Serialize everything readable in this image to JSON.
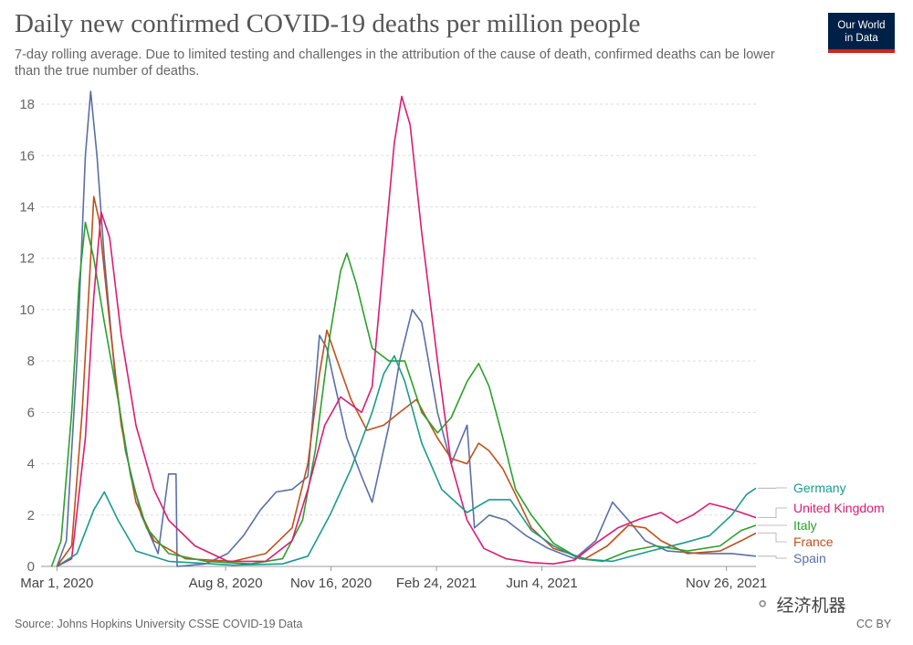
{
  "header": {
    "title": "Daily new confirmed COVID-19 deaths per million people",
    "subtitle": "7-day rolling average. Due to limited testing and challenges in the attribution of the cause of death, confirmed deaths can be lower than the true number of deaths.",
    "logo_line1": "Our World",
    "logo_line2": "in Data"
  },
  "footer": {
    "source": "Source: Johns Hopkins University CSSE COVID-19 Data",
    "license": "CC BY",
    "watermark": "经济机器"
  },
  "colors": {
    "Germany": "#1a9a8c",
    "United Kingdom": "#dc1c72",
    "Italy": "#2ca02c",
    "France": "#c0501a",
    "Spain": "#5b6fa6",
    "logo_bg": "#002147",
    "logo_bar": "#ce261e"
  },
  "chart_data": {
    "type": "line",
    "title": "Daily new confirmed COVID-19 deaths per million people",
    "x_axis": {
      "type": "date",
      "range": [
        "2020-02-15",
        "2021-12-24"
      ],
      "tick_labels": [
        "Mar 1, 2020",
        "Aug 8, 2020",
        "Nov 16, 2020",
        "Feb 24, 2021",
        "Jun 4, 2021",
        "Nov 26, 2021"
      ],
      "ticks": [
        "2020-03-01",
        "2020-08-08",
        "2020-11-16",
        "2021-02-24",
        "2021-06-04",
        "2021-11-26"
      ]
    },
    "y_axis": {
      "range": [
        0,
        18.5
      ],
      "ticks": [
        0,
        2,
        4,
        6,
        8,
        10,
        12,
        14,
        16,
        18
      ]
    },
    "grid": "horizontal dashed",
    "legend": "labels at right end of lines",
    "series": [
      {
        "name": "Germany",
        "points": [
          [
            "2020-03-01",
            0
          ],
          [
            "2020-03-20",
            0.5
          ],
          [
            "2020-04-05",
            2.2
          ],
          [
            "2020-04-15",
            2.9
          ],
          [
            "2020-04-28",
            1.8
          ],
          [
            "2020-05-15",
            0.6
          ],
          [
            "2020-06-15",
            0.2
          ],
          [
            "2020-08-15",
            0.05
          ],
          [
            "2020-10-01",
            0.1
          ],
          [
            "2020-10-25",
            0.4
          ],
          [
            "2020-11-15",
            2.0
          ],
          [
            "2020-12-05",
            3.8
          ],
          [
            "2020-12-25",
            6.0
          ],
          [
            "2021-01-05",
            7.5
          ],
          [
            "2021-01-15",
            8.2
          ],
          [
            "2021-01-25",
            7.2
          ],
          [
            "2021-02-10",
            4.8
          ],
          [
            "2021-03-01",
            3.0
          ],
          [
            "2021-03-25",
            2.1
          ],
          [
            "2021-04-15",
            2.6
          ],
          [
            "2021-05-05",
            2.6
          ],
          [
            "2021-05-25",
            1.4
          ],
          [
            "2021-06-15",
            0.8
          ],
          [
            "2021-07-10",
            0.3
          ],
          [
            "2021-08-10",
            0.2
          ],
          [
            "2021-09-15",
            0.6
          ],
          [
            "2021-10-15",
            0.9
          ],
          [
            "2021-11-10",
            1.2
          ],
          [
            "2021-12-01",
            2.0
          ],
          [
            "2021-12-15",
            2.8
          ],
          [
            "2021-12-24",
            3.05
          ]
        ]
      },
      {
        "name": "United Kingdom",
        "points": [
          [
            "2020-03-01",
            0
          ],
          [
            "2020-03-15",
            0.3
          ],
          [
            "2020-03-28",
            5.0
          ],
          [
            "2020-04-05",
            10.5
          ],
          [
            "2020-04-12",
            13.8
          ],
          [
            "2020-04-20",
            12.8
          ],
          [
            "2020-05-01",
            9.0
          ],
          [
            "2020-05-15",
            5.5
          ],
          [
            "2020-06-01",
            3.0
          ],
          [
            "2020-06-15",
            1.8
          ],
          [
            "2020-07-10",
            0.8
          ],
          [
            "2020-08-10",
            0.2
          ],
          [
            "2020-09-15",
            0.2
          ],
          [
            "2020-10-10",
            1.0
          ],
          [
            "2020-10-25",
            3.0
          ],
          [
            "2020-11-10",
            5.5
          ],
          [
            "2020-11-25",
            6.6
          ],
          [
            "2020-12-05",
            6.3
          ],
          [
            "2020-12-15",
            6.0
          ],
          [
            "2020-12-25",
            7.0
          ],
          [
            "2021-01-05",
            12.0
          ],
          [
            "2021-01-15",
            16.5
          ],
          [
            "2021-01-22",
            18.3
          ],
          [
            "2021-01-30",
            17.2
          ],
          [
            "2021-02-10",
            13.0
          ],
          [
            "2021-02-25",
            8.0
          ],
          [
            "2021-03-10",
            4.0
          ],
          [
            "2021-03-25",
            1.8
          ],
          [
            "2021-04-10",
            0.7
          ],
          [
            "2021-05-01",
            0.3
          ],
          [
            "2021-05-25",
            0.15
          ],
          [
            "2021-06-15",
            0.1
          ],
          [
            "2021-07-05",
            0.25
          ],
          [
            "2021-07-25",
            0.9
          ],
          [
            "2021-08-15",
            1.5
          ],
          [
            "2021-09-05",
            1.85
          ],
          [
            "2021-09-25",
            2.1
          ],
          [
            "2021-10-10",
            1.7
          ],
          [
            "2021-10-25",
            2.0
          ],
          [
            "2021-11-10",
            2.45
          ],
          [
            "2021-11-25",
            2.3
          ],
          [
            "2021-12-10",
            2.1
          ],
          [
            "2021-12-24",
            1.9
          ]
        ]
      },
      {
        "name": "Italy",
        "points": [
          [
            "2020-02-25",
            0
          ],
          [
            "2020-03-05",
            1.0
          ],
          [
            "2020-03-15",
            6.0
          ],
          [
            "2020-03-22",
            11.0
          ],
          [
            "2020-03-28",
            13.4
          ],
          [
            "2020-04-05",
            12.0
          ],
          [
            "2020-04-15",
            9.5
          ],
          [
            "2020-04-28",
            6.5
          ],
          [
            "2020-05-10",
            3.5
          ],
          [
            "2020-05-25",
            1.5
          ],
          [
            "2020-06-15",
            0.5
          ],
          [
            "2020-07-20",
            0.2
          ],
          [
            "2020-09-01",
            0.1
          ],
          [
            "2020-10-01",
            0.3
          ],
          [
            "2020-10-20",
            1.8
          ],
          [
            "2020-11-01",
            4.5
          ],
          [
            "2020-11-15",
            9.0
          ],
          [
            "2020-11-25",
            11.5
          ],
          [
            "2020-12-01",
            12.2
          ],
          [
            "2020-12-10",
            11.0
          ],
          [
            "2020-12-25",
            8.5
          ],
          [
            "2021-01-10",
            8.0
          ],
          [
            "2021-01-25",
            8.0
          ],
          [
            "2021-02-10",
            6.0
          ],
          [
            "2021-02-25",
            5.2
          ],
          [
            "2021-03-10",
            5.8
          ],
          [
            "2021-03-25",
            7.2
          ],
          [
            "2021-04-05",
            7.9
          ],
          [
            "2021-04-15",
            7.0
          ],
          [
            "2021-04-28",
            5.0
          ],
          [
            "2021-05-10",
            3.0
          ],
          [
            "2021-05-25",
            2.0
          ],
          [
            "2021-06-15",
            0.9
          ],
          [
            "2021-07-10",
            0.3
          ],
          [
            "2021-08-01",
            0.2
          ],
          [
            "2021-08-25",
            0.6
          ],
          [
            "2021-09-20",
            0.8
          ],
          [
            "2021-10-20",
            0.6
          ],
          [
            "2021-11-20",
            0.8
          ],
          [
            "2021-12-10",
            1.4
          ],
          [
            "2021-12-24",
            1.6
          ]
        ]
      },
      {
        "name": "France",
        "points": [
          [
            "2020-03-01",
            0
          ],
          [
            "2020-03-15",
            0.8
          ],
          [
            "2020-03-25",
            6.0
          ],
          [
            "2020-04-02",
            12.0
          ],
          [
            "2020-04-05",
            14.4
          ],
          [
            "2020-04-10",
            13.5
          ],
          [
            "2020-04-20",
            9.5
          ],
          [
            "2020-05-01",
            5.5
          ],
          [
            "2020-05-15",
            2.5
          ],
          [
            "2020-06-01",
            1.0
          ],
          [
            "2020-07-01",
            0.3
          ],
          [
            "2020-08-15",
            0.2
          ],
          [
            "2020-09-15",
            0.5
          ],
          [
            "2020-10-10",
            1.5
          ],
          [
            "2020-10-25",
            4.0
          ],
          [
            "2020-11-05",
            7.5
          ],
          [
            "2020-11-12",
            9.2
          ],
          [
            "2020-11-22",
            8.0
          ],
          [
            "2020-12-05",
            6.5
          ],
          [
            "2020-12-20",
            5.3
          ],
          [
            "2021-01-05",
            5.5
          ],
          [
            "2021-01-20",
            6.0
          ],
          [
            "2021-02-05",
            6.5
          ],
          [
            "2021-02-25",
            5.0
          ],
          [
            "2021-03-10",
            4.2
          ],
          [
            "2021-03-25",
            4.0
          ],
          [
            "2021-04-05",
            4.8
          ],
          [
            "2021-04-15",
            4.5
          ],
          [
            "2021-04-28",
            3.8
          ],
          [
            "2021-05-10",
            2.8
          ],
          [
            "2021-05-25",
            1.5
          ],
          [
            "2021-06-15",
            0.7
          ],
          [
            "2021-07-15",
            0.3
          ],
          [
            "2021-08-05",
            0.8
          ],
          [
            "2021-08-25",
            1.6
          ],
          [
            "2021-09-10",
            1.5
          ],
          [
            "2021-09-25",
            1.0
          ],
          [
            "2021-10-20",
            0.5
          ],
          [
            "2021-11-20",
            0.6
          ],
          [
            "2021-12-10",
            1.0
          ],
          [
            "2021-12-24",
            1.3
          ]
        ]
      },
      {
        "name": "Spain",
        "points": [
          [
            "2020-03-01",
            0
          ],
          [
            "2020-03-10",
            1.0
          ],
          [
            "2020-03-20",
            8.0
          ],
          [
            "2020-03-28",
            16.0
          ],
          [
            "2020-04-02",
            18.5
          ],
          [
            "2020-04-08",
            16.0
          ],
          [
            "2020-04-15",
            12.0
          ],
          [
            "2020-04-25",
            7.5
          ],
          [
            "2020-05-05",
            4.5
          ],
          [
            "2020-05-20",
            2.0
          ],
          [
            "2020-06-05",
            0.5
          ],
          [
            "2020-06-15",
            3.6
          ],
          [
            "2020-06-22",
            3.6
          ],
          [
            "2020-06-23",
            0
          ],
          [
            "2020-07-20",
            0.1
          ],
          [
            "2020-08-10",
            0.5
          ],
          [
            "2020-08-25",
            1.2
          ],
          [
            "2020-09-10",
            2.2
          ],
          [
            "2020-09-25",
            2.9
          ],
          [
            "2020-10-10",
            3.0
          ],
          [
            "2020-10-25",
            3.5
          ],
          [
            "2020-11-05",
            9.0
          ],
          [
            "2020-11-12",
            8.5
          ],
          [
            "2020-11-20",
            7.0
          ],
          [
            "2020-12-01",
            5.0
          ],
          [
            "2020-12-15",
            3.5
          ],
          [
            "2020-12-25",
            2.5
          ],
          [
            "2021-01-10",
            5.5
          ],
          [
            "2021-01-20",
            8.0
          ],
          [
            "2021-02-01",
            10.0
          ],
          [
            "2021-02-10",
            9.5
          ],
          [
            "2021-02-25",
            6.0
          ],
          [
            "2021-03-10",
            4.0
          ],
          [
            "2021-03-25",
            5.5
          ],
          [
            "2021-04-01",
            1.5
          ],
          [
            "2021-04-15",
            2.0
          ],
          [
            "2021-05-01",
            1.8
          ],
          [
            "2021-05-20",
            1.2
          ],
          [
            "2021-06-10",
            0.7
          ],
          [
            "2021-07-05",
            0.3
          ],
          [
            "2021-07-25",
            1.0
          ],
          [
            "2021-08-10",
            2.5
          ],
          [
            "2021-08-25",
            1.8
          ],
          [
            "2021-09-10",
            1.0
          ],
          [
            "2021-10-01",
            0.6
          ],
          [
            "2021-11-01",
            0.5
          ],
          [
            "2021-12-01",
            0.5
          ],
          [
            "2021-12-24",
            0.4
          ]
        ]
      }
    ]
  }
}
